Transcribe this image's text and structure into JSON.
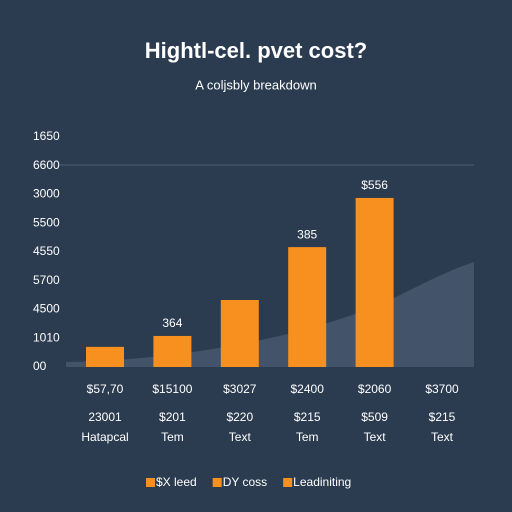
{
  "chart_data": {
    "type": "bar",
    "title": "Hightl-cel. pvet cost?",
    "subtitle": "A coljsbly breakdown",
    "categories": [
      "$57,70",
      "$15100",
      "$3027",
      "$2400",
      "$2060",
      "$3700"
    ],
    "sub_labels": [
      "23001",
      "$201",
      "$220",
      "$215",
      "$509",
      "$215"
    ],
    "sub_labels_2": [
      "Hatapcal",
      "Tem",
      "Text",
      "Tem",
      "Text",
      "Text"
    ],
    "values": [
      0.7,
      1.08,
      2.33,
      4.17,
      5.88,
      null
    ],
    "color": "#f7901e",
    "annotations": [
      {
        "text": "364",
        "bar": 1
      },
      {
        "text": "385",
        "bar": 3
      },
      {
        "text": "$556",
        "bar": 4
      }
    ],
    "ylim": [
      0,
      8
    ],
    "yticks": [
      {
        "value": 0,
        "label": "00"
      },
      {
        "value": 1,
        "label": "1010"
      },
      {
        "value": 2,
        "label": "4500"
      },
      {
        "value": 3,
        "label": "5700"
      },
      {
        "value": 4,
        "label": "4550"
      },
      {
        "value": 5,
        "label": "5500"
      },
      {
        "value": 6,
        "label": "3000"
      },
      {
        "value": 7,
        "label": "6600"
      },
      {
        "value": 8,
        "label": "1650"
      }
    ],
    "legend": [
      {
        "name": "$X leed",
        "color": "#f7901e"
      },
      {
        "name": "DY coss",
        "color": "#f7901e"
      },
      {
        "name": "Leadiniting",
        "color": "#f7901e"
      }
    ]
  }
}
